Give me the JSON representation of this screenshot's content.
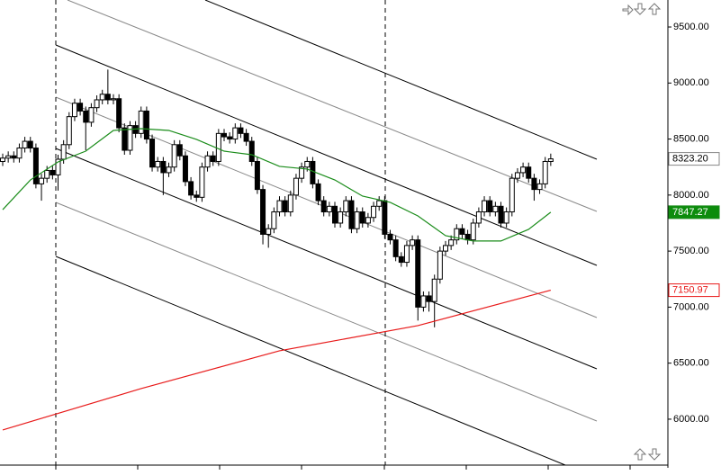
{
  "chart_data": {
    "type": "candlestick",
    "ylim": [
      5558,
      9741
    ],
    "yticks": [
      {
        "value": 9500,
        "label": "9500.00"
      },
      {
        "value": 9000,
        "label": "9000.00"
      },
      {
        "value": 8500,
        "label": "8500.00"
      },
      {
        "value": 8000,
        "label": "8000.00"
      },
      {
        "value": 7500,
        "label": "7500.00"
      },
      {
        "value": 7000,
        "label": "7000.00"
      },
      {
        "value": 6500,
        "label": "6500.00"
      },
      {
        "value": 6000,
        "label": "6000.00"
      }
    ],
    "up_color": "#ffffff",
    "down_color": "#000000",
    "open": [
      8300,
      8330,
      8350,
      8330,
      8420,
      8480,
      8420,
      8100,
      8150,
      8220,
      8180,
      8320,
      8450,
      8700,
      8820,
      8750,
      8650,
      8780,
      8850,
      8900,
      8850,
      8860,
      8600,
      8400,
      8620,
      8550,
      8750,
      8500,
      8250,
      8300,
      8200,
      8250,
      8450,
      8350,
      8120,
      8000,
      7980,
      8250,
      8350,
      8300,
      8550,
      8520,
      8500,
      8600,
      8550,
      8480,
      8300,
      8050,
      7650,
      7700,
      7850,
      7950,
      7850,
      8000,
      8150,
      8250,
      8300,
      8100,
      7950,
      7850,
      7900,
      7750,
      7850,
      7950,
      7700,
      7850,
      7750,
      7800,
      7900,
      7950,
      7650,
      7600,
      7450,
      7400,
      7550,
      7600,
      7000,
      7100,
      7050,
      7250,
      7500,
      7550,
      7600,
      7700,
      7650,
      7600,
      7750,
      7850,
      7950,
      7850,
      7900,
      7750,
      7850,
      8150,
      8200,
      8250,
      8150,
      8050,
      8100,
      8300
    ],
    "high": [
      8370,
      8390,
      8390,
      8460,
      8520,
      8520,
      8460,
      8190,
      8260,
      8260,
      8360,
      8490,
      8740,
      8860,
      8860,
      8790,
      8820,
      8890,
      8940,
      9120,
      8900,
      8900,
      8640,
      8660,
      8660,
      8790,
      8790,
      8540,
      8340,
      8340,
      8290,
      8490,
      8490,
      8390,
      8160,
      8040,
      8290,
      8390,
      8390,
      8590,
      8590,
      8560,
      8640,
      8640,
      8590,
      8520,
      8340,
      8090,
      7740,
      7890,
      7990,
      7990,
      8040,
      8190,
      8290,
      8340,
      8340,
      8140,
      7990,
      7940,
      7940,
      7890,
      7990,
      7990,
      7890,
      7890,
      7840,
      7940,
      7990,
      7990,
      7690,
      7640,
      7490,
      7590,
      7640,
      7640,
      7140,
      7140,
      7290,
      7540,
      7590,
      7640,
      7740,
      7740,
      7690,
      7790,
      7890,
      7990,
      7990,
      7940,
      7940,
      7890,
      8190,
      8240,
      8290,
      8290,
      8190,
      8140,
      8340,
      8370
    ],
    "low": [
      8260,
      8290,
      8290,
      8290,
      8380,
      8380,
      8060,
      7950,
      8110,
      8140,
      8040,
      8280,
      8410,
      8660,
      8710,
      8400,
      8610,
      8740,
      8810,
      8810,
      8810,
      8560,
      8360,
      8360,
      8510,
      8510,
      8460,
      8210,
      8210,
      8000,
      8160,
      8210,
      8310,
      8080,
      7960,
      7940,
      7940,
      8210,
      8260,
      8260,
      8480,
      8460,
      8460,
      8510,
      8440,
      8260,
      8010,
      7560,
      7530,
      7660,
      7810,
      7810,
      7810,
      7960,
      8110,
      8210,
      8060,
      7910,
      7810,
      7810,
      7710,
      7710,
      7810,
      7660,
      7660,
      7710,
      7710,
      7760,
      7860,
      7610,
      7560,
      7410,
      7360,
      7360,
      7510,
      6880,
      6960,
      6960,
      6820,
      7210,
      7460,
      7510,
      7560,
      7610,
      7560,
      7560,
      7710,
      7810,
      7810,
      7810,
      7710,
      7710,
      7810,
      8110,
      8160,
      8110,
      7950,
      8010,
      8060,
      8260
    ],
    "close": [
      8330,
      8350,
      8330,
      8420,
      8480,
      8420,
      8100,
      8150,
      8220,
      8180,
      8320,
      8450,
      8700,
      8820,
      8750,
      8650,
      8780,
      8850,
      8900,
      8850,
      8860,
      8600,
      8400,
      8620,
      8550,
      8750,
      8500,
      8250,
      8300,
      8200,
      8250,
      8450,
      8350,
      8120,
      8000,
      7980,
      8250,
      8350,
      8300,
      8550,
      8520,
      8500,
      8600,
      8550,
      8480,
      8300,
      8050,
      7650,
      7700,
      7850,
      7950,
      7850,
      8000,
      8150,
      8250,
      8300,
      8100,
      7950,
      7850,
      7900,
      7750,
      7850,
      7950,
      7700,
      7850,
      7750,
      7800,
      7900,
      7950,
      7650,
      7600,
      7450,
      7400,
      7550,
      7600,
      7000,
      7100,
      7050,
      7250,
      7500,
      7550,
      7600,
      7700,
      7650,
      7600,
      7750,
      7850,
      7950,
      7850,
      7900,
      7750,
      7850,
      8150,
      8200,
      8250,
      8150,
      8050,
      8100,
      8300,
      8323.2
    ],
    "last_label": "8323.20",
    "series": [
      {
        "color": "#1a8c1a",
        "x": [
          0,
          5,
          10,
          15,
          20,
          25,
          30,
          35,
          40,
          45,
          50,
          55,
          60,
          65,
          70,
          75,
          80,
          85,
          90,
          95,
          99
        ],
        "values": [
          7870,
          8135,
          8296,
          8392,
          8577,
          8593,
          8577,
          8497,
          8392,
          8360,
          8256,
          8232,
          8135,
          7991,
          7935,
          7814,
          7638,
          7590,
          7590,
          7694,
          7847.27
        ],
        "last_label": "7847.27",
        "label_bg": "#0c8c0c"
      },
      {
        "color": "#e81a1a",
        "x": [
          0,
          25,
          50,
          75,
          99
        ],
        "values": [
          5904,
          6273,
          6610,
          6835,
          7150.97
        ],
        "last_label": "7150.97",
        "label_bg": "#ffffff"
      }
    ]
  }
}
